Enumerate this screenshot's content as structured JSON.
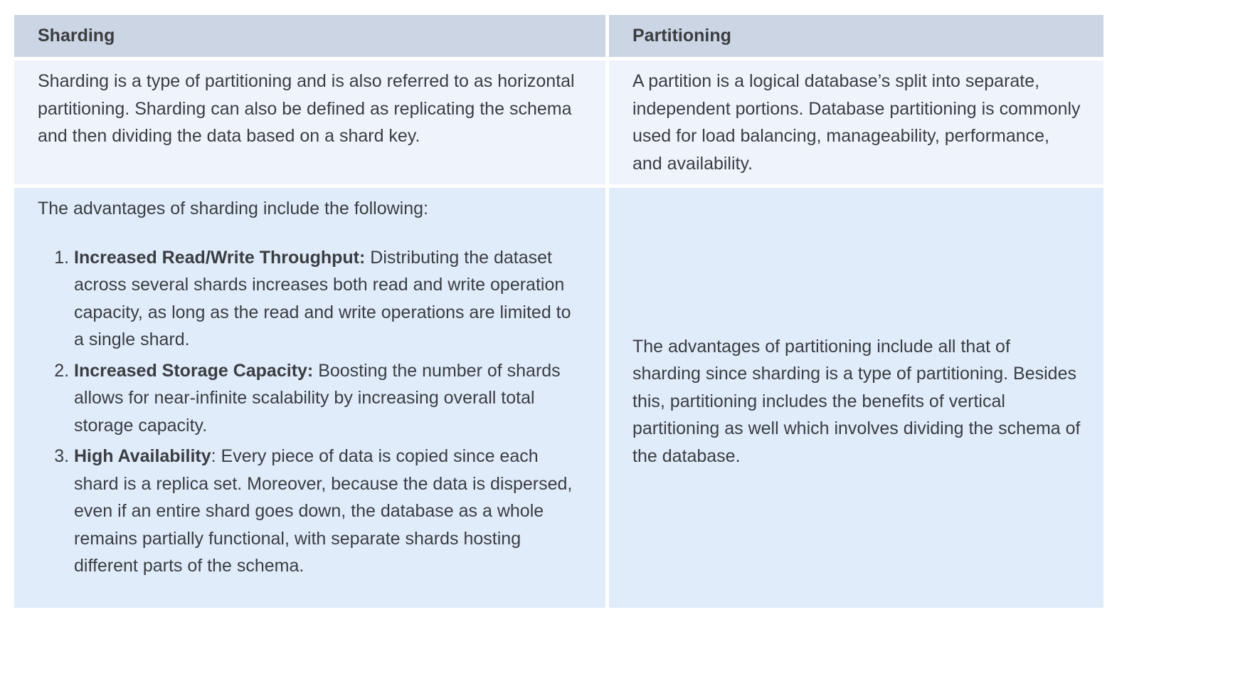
{
  "table": {
    "headers": [
      "Sharding",
      "Partitioning"
    ],
    "row1": {
      "sharding": "Sharding is a type of partitioning and is also referred to as horizontal partitioning. Sharding can also be defined as replicating the schema and then dividing the data based on a shard key.",
      "partitioning": "A partition is a logical database’s split into separate, independent portions. Database partitioning is commonly used for load balancing, manageability, performance, and availability."
    },
    "row2": {
      "sharding_intro": "The advantages of sharding include the following:",
      "sharding_items": [
        {
          "title": "Increased Read/Write Throughput:",
          "text": " Distributing the dataset across several shards increases both read and write operation capacity, as long as the read and write operations are limited to a single shard."
        },
        {
          "title": "Increased Storage Capacity:",
          "text": " Boosting the number of shards allows for near-infinite scalability by increasing overall total storage capacity."
        },
        {
          "title": "High Availability",
          "text": ": Every piece of data is copied since each shard is a replica set. Moreover, because the data is dispersed, even if an entire shard goes down, the database as a whole remains partially functional, with separate shards hosting different parts of the schema."
        }
      ],
      "partitioning": "The advantages of partitioning include all that of sharding since sharding is a type of partitioning. Besides this, partitioning includes the benefits of vertical partitioning as well which involves dividing the schema of the database."
    }
  }
}
